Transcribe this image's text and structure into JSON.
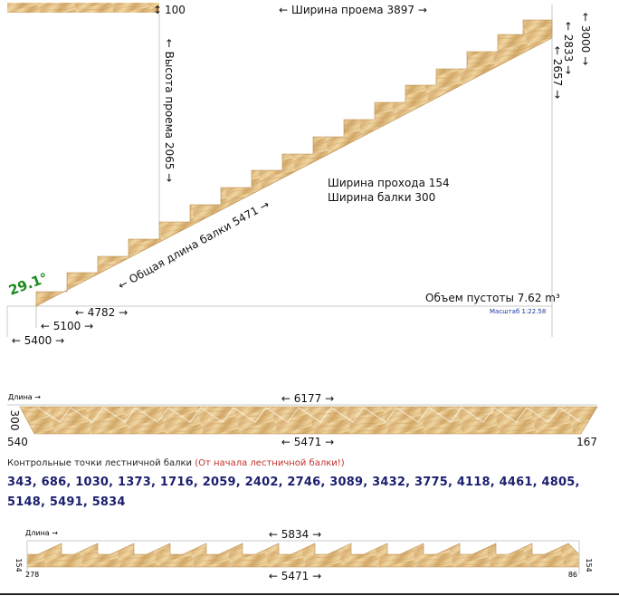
{
  "colors": {
    "wood_light": "#f0d9a8",
    "wood_mid": "#dcb77a",
    "wood_dark": "#b98a4c",
    "line": "#c8c8c8",
    "angle": "#1a8a1a",
    "points": "#1b1f6e",
    "note_red": "#c0302a"
  },
  "top": {
    "opening_width": "← Ширина проема 3897 →",
    "gap_100": "100",
    "opening_height": "← Высота проема 2065 →",
    "height_3000": "← 3000 →",
    "height_2833": "← 2833 →",
    "height_2657": "← 2657 →",
    "walk_width": "Ширина прохода 154",
    "beam_width": "Ширина балки 300",
    "beam_length": "← Общая длина балки 5471 →",
    "angle": "29.1°",
    "void_volume": "Объем пустоты 7.62 m³",
    "scale": "Масштаб 1:22.58",
    "dim_4782": "← 4782 →",
    "dim_5100": "← 5100 →",
    "dim_5400": "← 5400 →"
  },
  "beam1": {
    "length_label": "Длина →",
    "dim_6177": "← 6177 →",
    "dim_5471": "← 5471 →",
    "side_300": "300",
    "left_540": "540",
    "right_167": "167"
  },
  "control": {
    "caption": "Контрольные точки лестничной балки",
    "caption_note": "(От начала лестничной балки!)",
    "points": "343, 686, 1030, 1373, 1716, 2059, 2402, 2746, 3089, 3432, 3775, 4118, 4461, 4805, 5148, 5491, 5834"
  },
  "beam2": {
    "length_label": "Длина →",
    "dim_5834": "← 5834 →",
    "dim_5471": "← 5471 →",
    "left_154": "154",
    "left_278": "278",
    "right_86": "86",
    "right_154": "154"
  }
}
